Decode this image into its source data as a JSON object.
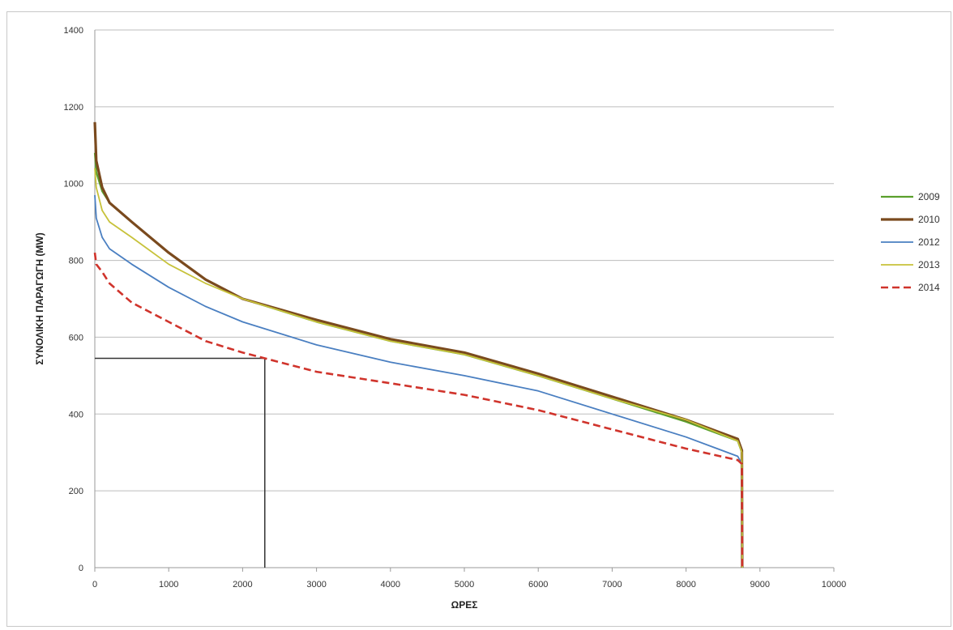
{
  "chart_data": {
    "type": "line",
    "xlabel": "ΩΡΕΣ",
    "ylabel": "ΣΥΝΟΛΙΚΗ ΠΑΡΑΓΩΓΗ (MW)",
    "xlim": [
      0,
      10000
    ],
    "ylim": [
      0,
      1400
    ],
    "x_ticks": [
      0,
      1000,
      2000,
      3000,
      4000,
      5000,
      6000,
      7000,
      8000,
      9000,
      10000
    ],
    "y_ticks": [
      0,
      200,
      400,
      600,
      800,
      1000,
      1200,
      1400
    ],
    "grid": "horizontal",
    "legend_position": "right",
    "series": [
      {
        "name": "2009",
        "color": "#5aa02c",
        "style": "solid",
        "x": [
          0,
          20,
          100,
          200,
          500,
          1000,
          1500,
          2000,
          3000,
          4000,
          5000,
          6000,
          7000,
          8000,
          8700,
          8755,
          8760
        ],
        "y": [
          1080,
          1030,
          980,
          950,
          900,
          820,
          750,
          700,
          640,
          590,
          555,
          500,
          440,
          380,
          330,
          300,
          0
        ]
      },
      {
        "name": "2010",
        "color": "#7a4a1e",
        "style": "solid",
        "x": [
          0,
          20,
          100,
          200,
          500,
          1000,
          1500,
          2000,
          3000,
          4000,
          5000,
          6000,
          7000,
          8000,
          8700,
          8755,
          8760
        ],
        "y": [
          1160,
          1060,
          990,
          950,
          900,
          820,
          750,
          700,
          645,
          595,
          560,
          505,
          445,
          385,
          335,
          305,
          0
        ]
      },
      {
        "name": "2012",
        "color": "#4a7fc1",
        "style": "solid",
        "x": [
          0,
          20,
          100,
          200,
          500,
          1000,
          1500,
          2000,
          3000,
          4000,
          5000,
          6000,
          7000,
          8000,
          8700,
          8755,
          8760
        ],
        "y": [
          970,
          910,
          860,
          830,
          790,
          730,
          680,
          640,
          580,
          535,
          500,
          460,
          400,
          340,
          290,
          270,
          0
        ]
      },
      {
        "name": "2013",
        "color": "#c7c23a",
        "style": "solid",
        "x": [
          0,
          20,
          100,
          200,
          500,
          1000,
          1500,
          2000,
          3000,
          4000,
          5000,
          6000,
          7000,
          8000,
          8700,
          8755,
          8760
        ],
        "y": [
          1040,
          990,
          930,
          900,
          860,
          790,
          740,
          700,
          640,
          590,
          555,
          500,
          440,
          385,
          330,
          300,
          0
        ]
      },
      {
        "name": "2014",
        "color": "#d0342c",
        "style": "dashed",
        "x": [
          0,
          20,
          100,
          200,
          500,
          1000,
          1500,
          2000,
          2300,
          3000,
          4000,
          5000,
          6000,
          7000,
          8000,
          8700,
          8755,
          8760
        ],
        "y": [
          820,
          790,
          770,
          740,
          690,
          640,
          590,
          560,
          545,
          510,
          480,
          450,
          410,
          360,
          310,
          280,
          270,
          0
        ]
      }
    ],
    "reference_lines": {
      "color": "#333333",
      "horizontal": {
        "y": 545,
        "x_from": 0,
        "x_to": 2300
      },
      "vertical": {
        "x": 2300,
        "y_from": 0,
        "y_to": 545
      }
    }
  }
}
